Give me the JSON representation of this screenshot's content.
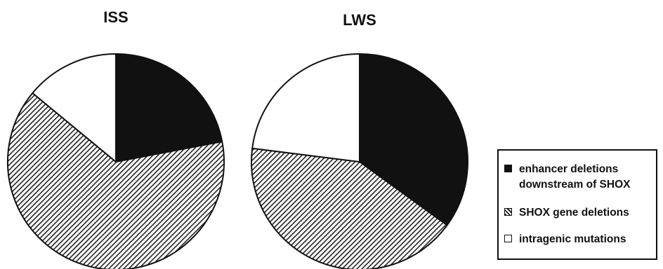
{
  "chart_data": [
    {
      "type": "pie",
      "title": "ISS",
      "categories": [
        "enhancer deletions downstream of SHOX",
        "SHOX gene deletions",
        "intragenic mutations"
      ],
      "values": [
        22,
        64,
        14
      ]
    },
    {
      "type": "pie",
      "title": "LWS",
      "categories": [
        "enhancer deletions downstream of SHOX",
        "SHOX gene deletions",
        "intragenic mutations"
      ],
      "values": [
        35,
        42,
        23
      ]
    }
  ],
  "legend": {
    "placement": "right",
    "items": [
      {
        "label": "enhancer deletions\ndownstream of SHOX",
        "fill": "solid",
        "color": "#111111"
      },
      {
        "label": "SHOX gene deletions",
        "fill": "hatched",
        "color": "#333333"
      },
      {
        "label": "intragenic mutations",
        "fill": "empty",
        "color": "#ffffff"
      }
    ]
  }
}
